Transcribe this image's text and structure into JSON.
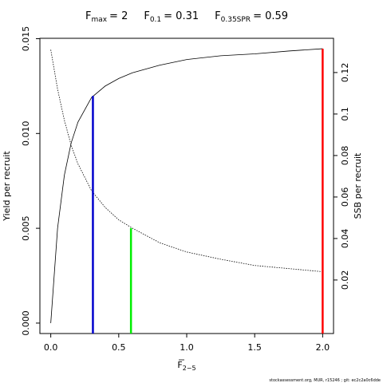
{
  "chart_data": {
    "type": "line",
    "reference_lines": [
      {
        "label": "F",
        "subscript": "max",
        "x": 2,
        "value_label": "= 2",
        "y": 0.01447,
        "axis": "y",
        "color": "#ff0000"
      },
      {
        "label": "F",
        "subscript": "0.1",
        "x": 0.31,
        "value_label": "= 0.31",
        "y": 0.01198,
        "axis": "y",
        "color": "#0000cd"
      },
      {
        "label": "F",
        "subscript": "0.35SPR",
        "x": 0.59,
        "value_label": "= 0.59",
        "y": 0.045,
        "axis": "y2",
        "color": "#00ee00"
      }
    ],
    "x": [
      0,
      0.05,
      0.1,
      0.15,
      0.2,
      0.3,
      0.4,
      0.5,
      0.6,
      0.8,
      1.0,
      1.25,
      1.5,
      1.75,
      2.0
    ],
    "series": [
      {
        "name": "Yield per recruit",
        "color": "#000000",
        "dash": "none",
        "axis": "y",
        "values": [
          0,
          0.005,
          0.0078,
          0.0095,
          0.0106,
          0.0119,
          0.0125,
          0.0129,
          0.0132,
          0.0136,
          0.0139,
          0.0141,
          0.0142,
          0.01435,
          0.01447
        ]
      },
      {
        "name": "SSB per recruit",
        "color": "#000000",
        "dash": "1.5,1.5",
        "axis": "y2",
        "values": [
          0.131,
          0.112,
          0.097,
          0.085,
          0.076,
          0.063,
          0.055,
          0.049,
          0.045,
          0.038,
          0.0335,
          0.03,
          0.027,
          0.0255,
          0.024
        ]
      }
    ],
    "xlabel": "F",
    "xlabel_sub": "2−5",
    "ylabel": "Yield per recruit",
    "y2label": "SSB per recruit",
    "xlim": [
      -0.08,
      2.08
    ],
    "xticks": [
      {
        "value": 0,
        "label": "0.0"
      },
      0.5,
      {
        "value": 1,
        "label": "1.0"
      },
      1.5,
      {
        "value": 2,
        "label": "2.0"
      }
    ],
    "ylim": [
      -0.00055,
      0.01502
    ],
    "yticks": [
      {
        "value": 0,
        "label": "0.000"
      },
      {
        "value": 0.005,
        "label": "0.005"
      },
      {
        "value": 0.01,
        "label": "0.010"
      },
      {
        "value": 0.015,
        "label": "0.015"
      }
    ],
    "y2lim": [
      -0.0058,
      0.1365
    ],
    "y2ticks": [
      0.02,
      0.04,
      0.06,
      0.08,
      0.1,
      0.12
    ],
    "footer": "stockassessment.org, MUR, r15246 ; git: ec2c2a0c6dde"
  }
}
